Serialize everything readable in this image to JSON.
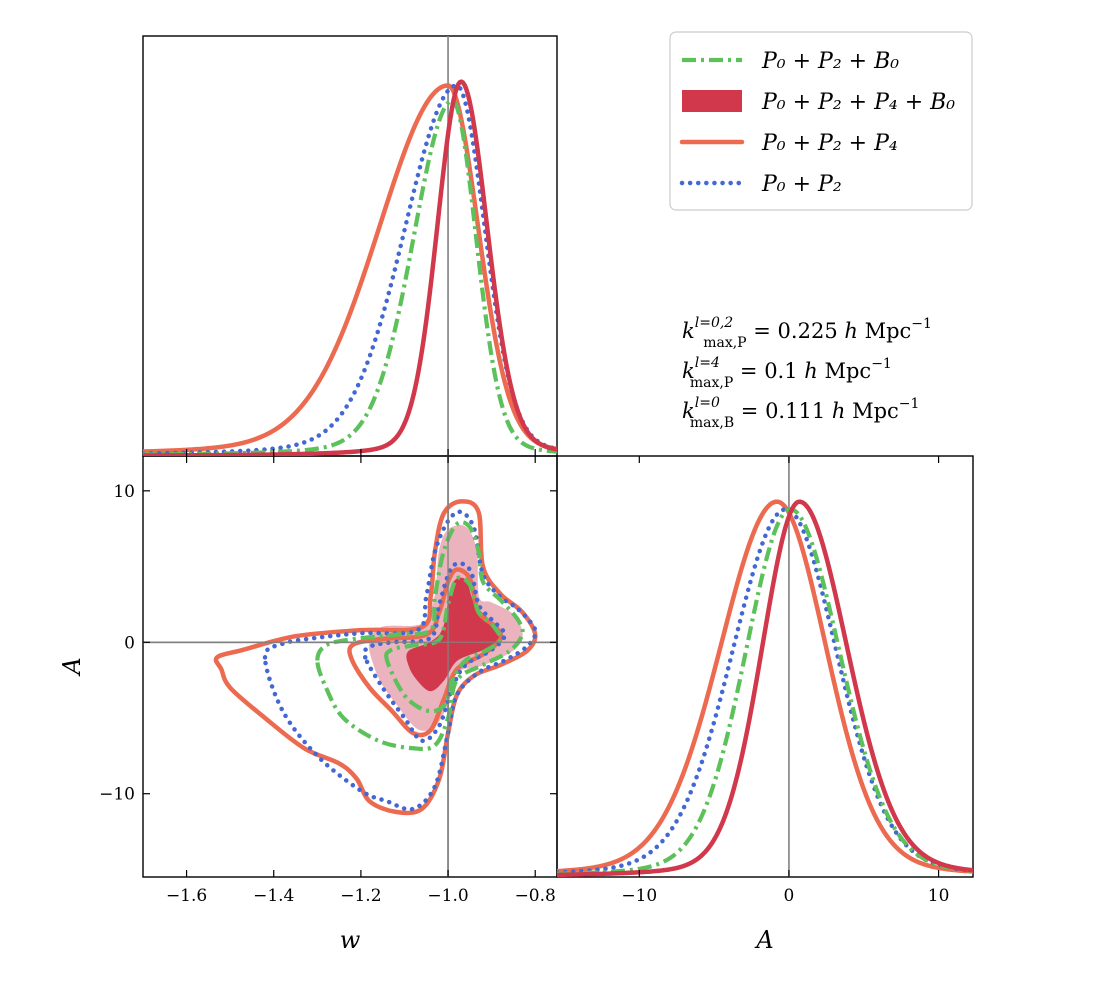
{
  "colors": {
    "green": "#5CC15A",
    "red": "#D1384B",
    "orange": "#EC6A50",
    "blue": "#4468D3",
    "pink_fill": "#EBB3BE",
    "truth_line": "#808080"
  },
  "chart_data": {
    "type": "triangle_plot",
    "parameters": [
      "w",
      "A"
    ],
    "ranges": {
      "w": [
        -1.7,
        -0.75
      ],
      "A": [
        -15.5,
        12.3
      ]
    },
    "truth": {
      "w": -1.0,
      "A": 0.0
    },
    "xlabel": "w",
    "ylabel": "A",
    "xlabel_A": "A",
    "ticks": {
      "w": [
        -1.6,
        -1.4,
        -1.2,
        -1.0,
        -0.8
      ],
      "w_labels": [
        "−1.6",
        "−1.4",
        "−1.2",
        "−1.0",
        "−0.8"
      ],
      "A": [
        -10,
        0,
        10
      ],
      "A_labels": [
        "−10",
        "0",
        "10"
      ]
    },
    "legend": {
      "placement": "top-right",
      "entries": [
        {
          "key": "green",
          "style": "dashdot",
          "label": "P₀ + P₂ + B₀"
        },
        {
          "key": "red",
          "style": "filled",
          "label": "P₀ + P₂ + P₄ + B₀"
        },
        {
          "key": "orange",
          "style": "solid",
          "label": "P₀ + P₂ + P₄"
        },
        {
          "key": "blue",
          "style": "dotted",
          "label": "P₀ + P₂"
        }
      ]
    },
    "annotations": [
      {
        "k": "k",
        "sup": "l=0,2",
        "sub": "max,P",
        "eq": " = 0.225 ",
        "h": "h",
        "unit": " Mpc",
        "exp": "−1"
      },
      {
        "k": "k",
        "sup": "l=4",
        "sub": "max,P",
        "eq": " = 0.1 ",
        "h": "h",
        "unit": " Mpc",
        "exp": "−1"
      },
      {
        "k": "k",
        "sup": "l=0",
        "sub": "max,B",
        "eq": " = 0.111 ",
        "h": "h",
        "unit": " Mpc",
        "exp": "−1"
      }
    ],
    "marginals": {
      "w": [
        {
          "key": "orange",
          "mode": -1.0,
          "sigma_left": 0.16,
          "sigma_right": 0.07,
          "peak": 0.97
        },
        {
          "key": "blue",
          "mode": -0.98,
          "sigma_left": 0.12,
          "sigma_right": 0.065,
          "peak": 0.97
        },
        {
          "key": "green",
          "mode": -0.99,
          "sigma_left": 0.09,
          "sigma_right": 0.055,
          "peak": 0.93
        },
        {
          "key": "red",
          "mode": -0.97,
          "sigma_left": 0.055,
          "sigma_right": 0.06,
          "peak": 0.98
        }
      ],
      "A": [
        {
          "key": "orange",
          "mode": -0.8,
          "sigma_left": 3.8,
          "sigma_right": 3.3,
          "peak": 0.98
        },
        {
          "key": "blue",
          "mode": -0.2,
          "sigma_left": 3.6,
          "sigma_right": 3.4,
          "peak": 0.96
        },
        {
          "key": "green",
          "mode": 0.1,
          "sigma_left": 3.0,
          "sigma_right": 3.3,
          "peak": 0.96
        },
        {
          "key": "red",
          "mode": 0.7,
          "sigma_left": 2.5,
          "sigma_right": 3.2,
          "peak": 0.98
        }
      ]
    },
    "contours": [
      {
        "key": "red",
        "level": "95%",
        "style": "filled-light",
        "points": [
          [
            -1.17,
            -1.5
          ],
          [
            -1.18,
            0.0
          ],
          [
            -1.15,
            1.0
          ],
          [
            -1.06,
            1.2
          ],
          [
            -1.03,
            3.0
          ],
          [
            -1.02,
            6.0
          ],
          [
            -1.0,
            7.4
          ],
          [
            -0.96,
            7.6
          ],
          [
            -0.935,
            6.0
          ],
          [
            -0.93,
            3.0
          ],
          [
            -0.9,
            2.6
          ],
          [
            -0.85,
            1.8
          ],
          [
            -0.83,
            0.5
          ],
          [
            -0.85,
            -0.5
          ],
          [
            -0.92,
            -1.5
          ],
          [
            -0.98,
            -2.0
          ],
          [
            -1.0,
            -4.0
          ],
          [
            -1.03,
            -5.5
          ],
          [
            -1.07,
            -5.7
          ],
          [
            -1.12,
            -4.0
          ],
          [
            -1.15,
            -2.8
          ]
        ]
      },
      {
        "key": "red",
        "level": "68%",
        "style": "filled-dark",
        "points": [
          [
            -1.09,
            -1.5
          ],
          [
            -1.09,
            -0.6
          ],
          [
            -1.04,
            0.0
          ],
          [
            -1.01,
            1.0
          ],
          [
            -0.99,
            3.8
          ],
          [
            -0.96,
            4.1
          ],
          [
            -0.94,
            2.5
          ],
          [
            -0.89,
            1.0
          ],
          [
            -0.88,
            0.0
          ],
          [
            -0.92,
            -0.5
          ],
          [
            -0.98,
            -1.2
          ],
          [
            -1.01,
            -2.5
          ],
          [
            -1.04,
            -3.2
          ],
          [
            -1.07,
            -2.5
          ]
        ]
      },
      {
        "key": "orange",
        "level": "95%",
        "style": "solid",
        "points": [
          [
            -1.52,
            -1.8
          ],
          [
            -1.53,
            -1.0
          ],
          [
            -1.47,
            -0.5
          ],
          [
            -1.35,
            0.4
          ],
          [
            -1.2,
            0.8
          ],
          [
            -1.06,
            1.0
          ],
          [
            -1.04,
            3.0
          ],
          [
            -1.03,
            6.0
          ],
          [
            -1.01,
            8.5
          ],
          [
            -0.97,
            9.3
          ],
          [
            -0.93,
            8.6
          ],
          [
            -0.92,
            5.0
          ],
          [
            -0.88,
            3.2
          ],
          [
            -0.83,
            2.0
          ],
          [
            -0.8,
            0.5
          ],
          [
            -0.82,
            -0.6
          ],
          [
            -0.88,
            -1.5
          ],
          [
            -0.94,
            -2.2
          ],
          [
            -0.98,
            -3.5
          ],
          [
            -1.0,
            -6.0
          ],
          [
            -1.02,
            -9.0
          ],
          [
            -1.06,
            -11.0
          ],
          [
            -1.12,
            -11.2
          ],
          [
            -1.18,
            -10.5
          ],
          [
            -1.21,
            -9.0
          ],
          [
            -1.25,
            -8.0
          ],
          [
            -1.33,
            -7.0
          ],
          [
            -1.42,
            -5.0
          ],
          [
            -1.5,
            -3.0
          ]
        ]
      },
      {
        "key": "orange",
        "level": "68%",
        "style": "solid",
        "points": [
          [
            -1.22,
            -1.2
          ],
          [
            -1.22,
            -0.2
          ],
          [
            -1.16,
            0.2
          ],
          [
            -1.05,
            0.5
          ],
          [
            -1.02,
            2.0
          ],
          [
            -1.0,
            4.0
          ],
          [
            -0.98,
            4.8
          ],
          [
            -0.95,
            4.2
          ],
          [
            -0.93,
            2.0
          ],
          [
            -0.89,
            1.0
          ],
          [
            -0.88,
            0.2
          ],
          [
            -0.92,
            -0.8
          ],
          [
            -0.98,
            -1.8
          ],
          [
            -1.01,
            -3.8
          ],
          [
            -1.04,
            -5.8
          ],
          [
            -1.08,
            -6.0
          ],
          [
            -1.13,
            -4.5
          ],
          [
            -1.18,
            -3.0
          ]
        ]
      },
      {
        "key": "blue",
        "level": "95%",
        "style": "dotted",
        "points": [
          [
            -1.42,
            -1.0
          ],
          [
            -1.38,
            -0.1
          ],
          [
            -1.3,
            0.3
          ],
          [
            -1.2,
            0.6
          ],
          [
            -1.07,
            0.8
          ],
          [
            -1.05,
            3.0
          ],
          [
            -1.03,
            6.0
          ],
          [
            -1.0,
            8.0
          ],
          [
            -0.97,
            8.6
          ],
          [
            -0.94,
            7.5
          ],
          [
            -0.92,
            4.5
          ],
          [
            -0.88,
            3.0
          ],
          [
            -0.84,
            2.2
          ],
          [
            -0.8,
            0.8
          ],
          [
            -0.82,
            -0.3
          ],
          [
            -0.87,
            -1.2
          ],
          [
            -0.93,
            -2.0
          ],
          [
            -0.98,
            -3.5
          ],
          [
            -1.0,
            -6.0
          ],
          [
            -1.03,
            -9.5
          ],
          [
            -1.08,
            -11.0
          ],
          [
            -1.14,
            -10.5
          ],
          [
            -1.2,
            -9.8
          ],
          [
            -1.3,
            -7.5
          ],
          [
            -1.38,
            -4.5
          ]
        ]
      },
      {
        "key": "blue",
        "level": "68%",
        "style": "dotted",
        "points": [
          [
            -1.19,
            -1.0
          ],
          [
            -1.18,
            -0.3
          ],
          [
            -1.13,
            0.0
          ],
          [
            -1.04,
            0.3
          ],
          [
            -1.02,
            2.5
          ],
          [
            -0.99,
            5.0
          ],
          [
            -0.95,
            4.8
          ],
          [
            -0.93,
            2.5
          ],
          [
            -0.9,
            1.5
          ],
          [
            -0.87,
            0.5
          ],
          [
            -0.9,
            -0.5
          ],
          [
            -0.96,
            -1.5
          ],
          [
            -0.99,
            -3.0
          ],
          [
            -1.02,
            -5.5
          ],
          [
            -1.06,
            -6.5
          ],
          [
            -1.1,
            -5.0
          ],
          [
            -1.15,
            -3.0
          ]
        ]
      },
      {
        "key": "green",
        "level": "95%",
        "style": "dashdot",
        "points": [
          [
            -1.3,
            -1.2
          ],
          [
            -1.28,
            -0.2
          ],
          [
            -1.22,
            0.2
          ],
          [
            -1.12,
            0.5
          ],
          [
            -1.04,
            0.8
          ],
          [
            -1.03,
            3.0
          ],
          [
            -1.01,
            6.0
          ],
          [
            -0.98,
            7.8
          ],
          [
            -0.95,
            7.6
          ],
          [
            -0.93,
            6.0
          ],
          [
            -0.92,
            4.0
          ],
          [
            -0.88,
            2.8
          ],
          [
            -0.84,
            1.5
          ],
          [
            -0.83,
            0.5
          ],
          [
            -0.86,
            -0.6
          ],
          [
            -0.92,
            -1.5
          ],
          [
            -0.98,
            -2.5
          ],
          [
            -1.0,
            -5.0
          ],
          [
            -1.03,
            -6.8
          ],
          [
            -1.08,
            -7.0
          ],
          [
            -1.16,
            -6.5
          ],
          [
            -1.24,
            -5.0
          ],
          [
            -1.28,
            -3.0
          ]
        ]
      },
      {
        "key": "green",
        "level": "68%",
        "style": "dashdot",
        "points": [
          [
            -1.14,
            -1.2
          ],
          [
            -1.13,
            -0.5
          ],
          [
            -1.08,
            -0.2
          ],
          [
            -1.02,
            0.2
          ],
          [
            -1.0,
            2.5
          ],
          [
            -0.98,
            4.2
          ],
          [
            -0.95,
            3.8
          ],
          [
            -0.93,
            2.0
          ],
          [
            -0.9,
            1.2
          ],
          [
            -0.88,
            0.2
          ],
          [
            -0.91,
            -0.5
          ],
          [
            -0.96,
            -1.2
          ],
          [
            -0.99,
            -2.5
          ],
          [
            -1.01,
            -4.2
          ],
          [
            -1.05,
            -4.5
          ],
          [
            -1.1,
            -3.5
          ]
        ]
      }
    ]
  }
}
